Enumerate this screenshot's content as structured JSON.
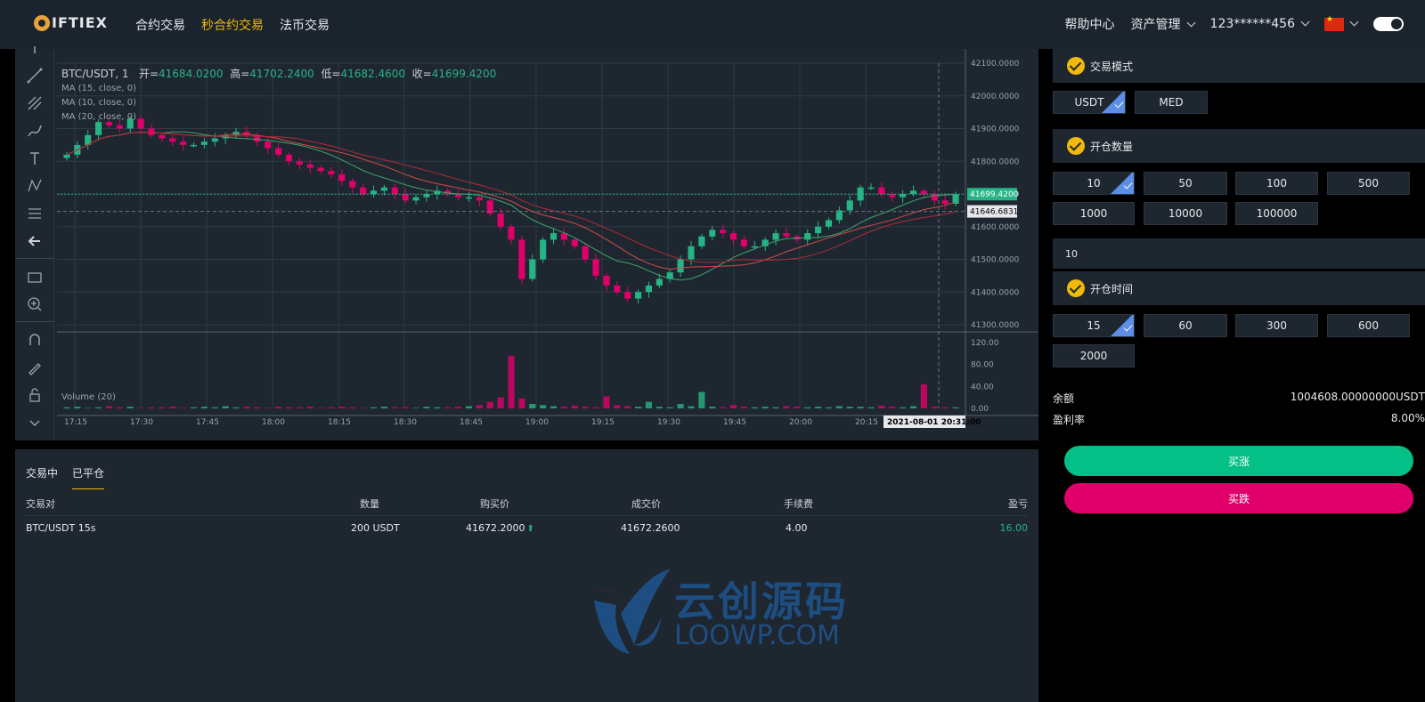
{
  "header": {
    "logo_text": "IFTIEX",
    "nav": [
      "合约交易",
      "秒合约交易",
      "法币交易"
    ],
    "active_nav": 1,
    "help": "帮助中心",
    "assets": "资产管理",
    "account": "123******456"
  },
  "chart": {
    "symbol": "BTC/USDT, 1",
    "open_label": "开=",
    "open": "41684.0200",
    "high_label": "高=",
    "high": "41702.2400",
    "low_label": "低=",
    "low": "41682.4600",
    "close_label": "收=",
    "close": "41699.4200",
    "ma": [
      "MA (15, close, 0)",
      "MA (10, close, 0)",
      "MA (20, close, 0)"
    ],
    "volume_label": "Volume (20)",
    "current_price": "41699.4200",
    "ref_price": "41646.6831",
    "crosshair_time": "2021-08-01 20:31:00"
  },
  "chart_data": {
    "type": "candlestick",
    "x_ticks": [
      "17:15",
      "17:30",
      "17:45",
      "18:00",
      "18:15",
      "18:30",
      "18:45",
      "19:00",
      "19:15",
      "19:30",
      "19:45",
      "20:00",
      "20:15"
    ],
    "y_ticks": [
      "42100.0000",
      "42000.0000",
      "41900.0000",
      "41800.0000",
      "41700.0000",
      "41600.0000",
      "41500.0000",
      "41400.0000",
      "41300.0000"
    ],
    "ylim": [
      41300,
      42100
    ],
    "volume_ticks": [
      "120.00",
      "80.00",
      "40.00",
      "0.00"
    ],
    "volume_ylim": [
      0,
      120
    ],
    "close_series": [
      41820,
      41850,
      41880,
      41920,
      41910,
      41900,
      41930,
      41900,
      41880,
      41870,
      41860,
      41850,
      41850,
      41860,
      41870,
      41880,
      41890,
      41880,
      41860,
      41840,
      41820,
      41800,
      41790,
      41780,
      41770,
      41760,
      41740,
      41720,
      41700,
      41710,
      41720,
      41700,
      41680,
      41690,
      41700,
      41710,
      41700,
      41690,
      41690,
      41680,
      41640,
      41600,
      41560,
      41440,
      41500,
      41560,
      41580,
      41560,
      41540,
      41500,
      41450,
      41420,
      41400,
      41380,
      41400,
      41420,
      41440,
      41460,
      41500,
      41540,
      41570,
      41590,
      41580,
      41560,
      41540,
      41540,
      41560,
      41580,
      41570,
      41560,
      41580,
      41600,
      41620,
      41650,
      41680,
      41720,
      41720,
      41700,
      41690,
      41700,
      41710,
      41700,
      41680,
      41670,
      41699
    ],
    "volume_series": [
      2,
      3,
      1,
      2,
      4,
      2,
      3,
      1,
      2,
      2,
      3,
      1,
      2,
      3,
      2,
      4,
      2,
      3,
      2,
      1,
      3,
      2,
      2,
      3,
      1,
      2,
      3,
      2,
      1,
      2,
      3,
      2,
      2,
      1,
      3,
      2,
      2,
      3,
      4,
      6,
      12,
      20,
      96,
      18,
      8,
      6,
      4,
      3,
      5,
      3,
      2,
      22,
      6,
      4,
      3,
      12,
      3,
      2,
      8,
      4,
      30,
      3,
      2,
      6,
      3,
      2,
      3,
      2,
      4,
      3,
      2,
      3,
      2,
      4,
      3,
      3,
      2,
      5,
      3,
      2,
      4,
      44,
      3,
      2,
      2
    ]
  },
  "orders": {
    "tabs": [
      "交易中",
      "已平仓"
    ],
    "active_tab": 1,
    "headers": [
      "交易对",
      "数量",
      "购买价",
      "成交价",
      "手续费",
      "盈亏"
    ],
    "rows": [
      {
        "pair": "BTC/USDT 15s",
        "qty": "200 USDT",
        "buy": "41672.2000",
        "deal": "41672.2600",
        "fee": "4.00",
        "pnl": "16.00"
      }
    ]
  },
  "panel": {
    "mode_title": "交易模式",
    "modes": [
      "USDT",
      "MED"
    ],
    "qty_title": "开仓数量",
    "qtys": [
      "10",
      "50",
      "100",
      "500",
      "1000",
      "10000",
      "100000"
    ],
    "qty_input": "10",
    "time_title": "开仓时间",
    "times": [
      "15",
      "60",
      "300",
      "600",
      "2000"
    ],
    "balance_label": "余额",
    "balance": "1004608.00000000USDT",
    "rate_label": "盈利率",
    "rate": "8.00%",
    "buy_up": "买涨",
    "buy_down": "买跌"
  },
  "watermark": {
    "cn": "云创源码",
    "en": "LOOWP.COM"
  },
  "colors": {
    "up": "#26b487",
    "down": "#e1006b",
    "accent": "#f0b90b",
    "select": "#5b8ee6"
  }
}
